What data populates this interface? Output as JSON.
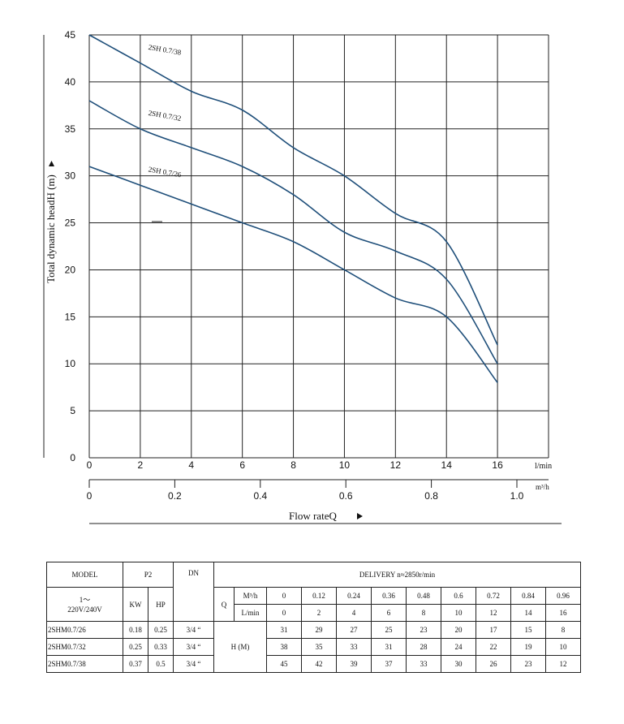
{
  "chart_data": {
    "type": "line",
    "xlabel": "Flow rateQ",
    "ylabel": "Total dynamic headH (m)",
    "x_unit": "l/min",
    "x2_unit": "m³/h",
    "xlim": [
      0,
      18
    ],
    "ylim": [
      0,
      45
    ],
    "x_ticks": [
      0,
      2,
      4,
      6,
      8,
      10,
      12,
      14,
      16
    ],
    "x2_ticks": [
      "0",
      "0.2",
      "0.4",
      "0.6",
      "0.8",
      "1.0"
    ],
    "y_ticks": [
      0,
      5,
      10,
      15,
      20,
      25,
      30,
      35,
      40,
      45
    ],
    "grid": true,
    "series": [
      {
        "name": "2SH 0.7/38",
        "x": [
          0,
          2,
          4,
          6,
          8,
          10,
          12,
          14,
          16
        ],
        "y": [
          45,
          42,
          39,
          37,
          33,
          30,
          26,
          23,
          12
        ]
      },
      {
        "name": "2SH 0.7/32",
        "x": [
          0,
          2,
          4,
          6,
          8,
          10,
          12,
          14,
          16
        ],
        "y": [
          38,
          35,
          33,
          31,
          28,
          24,
          22,
          19,
          10
        ]
      },
      {
        "name": "2SH 0.7/26",
        "x": [
          0,
          2,
          4,
          6,
          8,
          10,
          12,
          14,
          16
        ],
        "y": [
          31,
          29,
          27,
          25,
          23,
          20,
          17,
          15,
          8
        ]
      }
    ],
    "line_color": "#1f4f7a"
  },
  "table": {
    "model_header": "MODEL",
    "p2_header": "P2",
    "dn_header": "DN",
    "delivery_header": "DELIVERY  n≈2850r/min",
    "voltage_line1": "1～",
    "voltage_line2": "220V/240V",
    "kw_header": "KW",
    "hp_header": "HP",
    "q_label": "Q",
    "m3h_label": "M³/h",
    "lmin_label": "L/min",
    "h_label": "H (M)",
    "m3h_values": [
      "0",
      "0.12",
      "0.24",
      "0.36",
      "0.48",
      "0.6",
      "0.72",
      "0.84",
      "0.96"
    ],
    "lmin_values": [
      "0",
      "2",
      "4",
      "6",
      "8",
      "10",
      "12",
      "14",
      "16"
    ],
    "rows": [
      {
        "model": "2SHM0.7/26",
        "kw": "0.18",
        "hp": "0.25",
        "dn": "3/4 “",
        "h": [
          "31",
          "29",
          "27",
          "25",
          "23",
          "20",
          "17",
          "15",
          "8"
        ]
      },
      {
        "model": "2SHM0.7/32",
        "kw": "0.25",
        "hp": "0.33",
        "dn": "3/4 “",
        "h": [
          "38",
          "35",
          "33",
          "31",
          "28",
          "24",
          "22",
          "19",
          "10"
        ]
      },
      {
        "model": "2SHM0.7/38",
        "kw": "0.37",
        "hp": "0.5",
        "dn": "3/4 “",
        "h": [
          "45",
          "42",
          "39",
          "37",
          "33",
          "30",
          "26",
          "23",
          "12"
        ]
      }
    ]
  }
}
